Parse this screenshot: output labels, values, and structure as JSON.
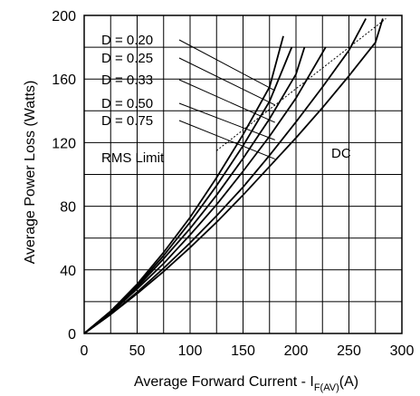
{
  "chart_data": {
    "type": "line",
    "xlabel": "Average Forward Current - I",
    "xlabel_subscript": "F(AV)",
    "xlabel_unit": "(A)",
    "ylabel": "Average Power Loss (Watts)",
    "xlim": [
      0,
      300
    ],
    "ylim": [
      0,
      200
    ],
    "x_ticks": [
      "0",
      "50",
      "100",
      "150",
      "200",
      "250",
      "300"
    ],
    "y_ticks": [
      "0",
      "40",
      "80",
      "120",
      "160",
      "200"
    ],
    "grid": true,
    "annotations": {
      "rms_limit": "RMS Limit",
      "dc": "DC"
    },
    "series": [
      {
        "name": "D = 0.20",
        "x": [
          0,
          25,
          50,
          75,
          100,
          125,
          150,
          175,
          188
        ],
        "y": [
          0,
          14,
          31,
          51,
          73,
          98,
          125,
          155,
          187
        ]
      },
      {
        "name": "D = 0.25",
        "x": [
          0,
          25,
          50,
          75,
          100,
          125,
          150,
          175,
          196
        ],
        "y": [
          0,
          14,
          30,
          49,
          70,
          93,
          118,
          146,
          180
        ]
      },
      {
        "name": "D = 0.33",
        "x": [
          0,
          25,
          50,
          75,
          100,
          125,
          150,
          175,
          200,
          208
        ],
        "y": [
          0,
          13,
          29,
          47,
          66,
          87,
          110,
          135,
          163,
          180
        ]
      },
      {
        "name": "D = 0.50",
        "x": [
          0,
          25,
          50,
          75,
          100,
          125,
          150,
          175,
          200,
          228
        ],
        "y": [
          0,
          13,
          28,
          44,
          62,
          81,
          102,
          124,
          148,
          180
        ]
      },
      {
        "name": "D = 0.75",
        "x": [
          0,
          25,
          50,
          75,
          100,
          125,
          150,
          175,
          200,
          225,
          250,
          266
        ],
        "y": [
          0,
          12,
          26,
          41,
          57,
          74,
          92,
          112,
          133,
          155,
          178,
          198
        ]
      },
      {
        "name": "DC",
        "x": [
          0,
          25,
          50,
          75,
          100,
          125,
          150,
          175,
          200,
          225,
          250,
          275,
          282
        ],
        "y": [
          0,
          12,
          25,
          39,
          54,
          70,
          87,
          105,
          123,
          142,
          162,
          183,
          198
        ]
      }
    ],
    "rms_limit_line": {
      "x": [
        125,
        285
      ],
      "y": [
        115,
        198
      ]
    }
  }
}
